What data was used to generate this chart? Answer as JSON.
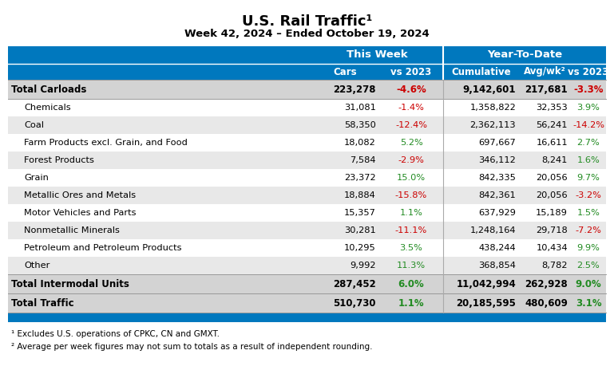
{
  "title": "U.S. Rail Traffic¹",
  "subtitle": "Week 42, 2024 – Ended October 19, 2024",
  "header_group1": "This Week",
  "header_group2": "Year-To-Date",
  "col_headers": [
    "Cars",
    "vs 2023",
    "Cumulative",
    "Avg/wk²",
    "vs 2023"
  ],
  "rows": [
    {
      "label": "Total Carloads",
      "bold": true,
      "indent": false,
      "cars": "223,278",
      "vs2023_week": "-4.6%",
      "cumulative": "9,142,601",
      "avg_wk": "217,681",
      "vs2023_ytd": "-3.3%",
      "vs2023_week_neg": true,
      "vs2023_ytd_neg": true
    },
    {
      "label": "Chemicals",
      "bold": false,
      "indent": true,
      "cars": "31,081",
      "vs2023_week": "-1.4%",
      "cumulative": "1,358,822",
      "avg_wk": "32,353",
      "vs2023_ytd": "3.9%",
      "vs2023_week_neg": true,
      "vs2023_ytd_neg": false
    },
    {
      "label": "Coal",
      "bold": false,
      "indent": true,
      "cars": "58,350",
      "vs2023_week": "-12.4%",
      "cumulative": "2,362,113",
      "avg_wk": "56,241",
      "vs2023_ytd": "-14.2%",
      "vs2023_week_neg": true,
      "vs2023_ytd_neg": true
    },
    {
      "label": "Farm Products excl. Grain, and Food",
      "bold": false,
      "indent": true,
      "cars": "18,082",
      "vs2023_week": "5.2%",
      "cumulative": "697,667",
      "avg_wk": "16,611",
      "vs2023_ytd": "2.7%",
      "vs2023_week_neg": false,
      "vs2023_ytd_neg": false
    },
    {
      "label": "Forest Products",
      "bold": false,
      "indent": true,
      "cars": "7,584",
      "vs2023_week": "-2.9%",
      "cumulative": "346,112",
      "avg_wk": "8,241",
      "vs2023_ytd": "1.6%",
      "vs2023_week_neg": true,
      "vs2023_ytd_neg": false
    },
    {
      "label": "Grain",
      "bold": false,
      "indent": true,
      "cars": "23,372",
      "vs2023_week": "15.0%",
      "cumulative": "842,335",
      "avg_wk": "20,056",
      "vs2023_ytd": "9.7%",
      "vs2023_week_neg": false,
      "vs2023_ytd_neg": false
    },
    {
      "label": "Metallic Ores and Metals",
      "bold": false,
      "indent": true,
      "cars": "18,884",
      "vs2023_week": "-15.8%",
      "cumulative": "842,361",
      "avg_wk": "20,056",
      "vs2023_ytd": "-3.2%",
      "vs2023_week_neg": true,
      "vs2023_ytd_neg": true
    },
    {
      "label": "Motor Vehicles and Parts",
      "bold": false,
      "indent": true,
      "cars": "15,357",
      "vs2023_week": "1.1%",
      "cumulative": "637,929",
      "avg_wk": "15,189",
      "vs2023_ytd": "1.5%",
      "vs2023_week_neg": false,
      "vs2023_ytd_neg": false
    },
    {
      "label": "Nonmetallic Minerals",
      "bold": false,
      "indent": true,
      "cars": "30,281",
      "vs2023_week": "-11.1%",
      "cumulative": "1,248,164",
      "avg_wk": "29,718",
      "vs2023_ytd": "-7.2%",
      "vs2023_week_neg": true,
      "vs2023_ytd_neg": true
    },
    {
      "label": "Petroleum and Petroleum Products",
      "bold": false,
      "indent": true,
      "cars": "10,295",
      "vs2023_week": "3.5%",
      "cumulative": "438,244",
      "avg_wk": "10,434",
      "vs2023_ytd": "9.9%",
      "vs2023_week_neg": false,
      "vs2023_ytd_neg": false
    },
    {
      "label": "Other",
      "bold": false,
      "indent": true,
      "cars": "9,992",
      "vs2023_week": "11.3%",
      "cumulative": "368,854",
      "avg_wk": "8,782",
      "vs2023_ytd": "2.5%",
      "vs2023_week_neg": false,
      "vs2023_ytd_neg": false
    },
    {
      "label": "Total Intermodal Units",
      "bold": true,
      "indent": false,
      "cars": "287,452",
      "vs2023_week": "6.0%",
      "cumulative": "11,042,994",
      "avg_wk": "262,928",
      "vs2023_ytd": "9.0%",
      "vs2023_week_neg": false,
      "vs2023_ytd_neg": false
    },
    {
      "label": "Total Traffic",
      "bold": true,
      "indent": false,
      "cars": "510,730",
      "vs2023_week": "1.1%",
      "cumulative": "20,185,595",
      "avg_wk": "480,609",
      "vs2023_ytd": "3.1%",
      "vs2023_week_neg": false,
      "vs2023_ytd_neg": false
    }
  ],
  "footnote1": "¹ Excludes U.S. operations of CPKC, CN and GMXT.",
  "footnote2": "² Average per week figures may not sum to totals as a result of independent rounding.",
  "header_bg": "#0078BE",
  "header_text": "#FFFFFF",
  "row_bg_alt": "#E8E8E8",
  "row_bg_normal": "#FFFFFF",
  "row_bg_bold": "#D3D3D3",
  "neg_color": "#CC0000",
  "pos_color": "#228B22",
  "black_color": "#000000",
  "background_color": "#FFFFFF"
}
